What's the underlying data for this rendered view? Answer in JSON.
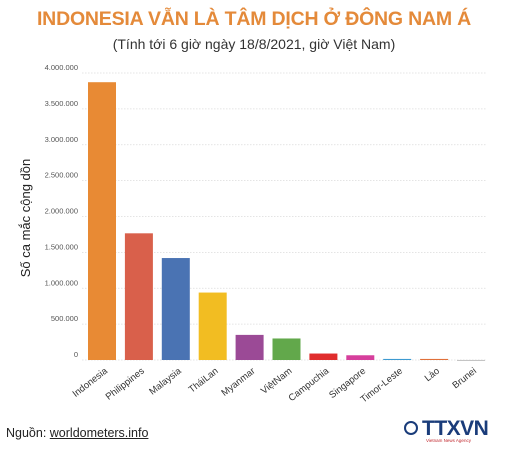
{
  "chart_data": {
    "type": "bar",
    "title": "INDONESIA VẪN LÀ TÂM DỊCH Ở ĐÔNG NAM Á",
    "subtitle": "(Tính tới 6 giờ ngày 18/8/2021, giờ Việt Nam)",
    "ylabel": "Số ca mắc cộng dồn",
    "xlabel": "",
    "ylim": [
      0,
      4000000
    ],
    "yticks": [
      "0",
      "500.000",
      "1.000.000",
      "1.500.000",
      "2.000.000",
      "2.500.000",
      "3.000.000",
      "3.500.000",
      "4.000.000"
    ],
    "grid": true,
    "categories": [
      "Indonesia",
      "Philippines",
      "Malaysia",
      "TháiLan",
      "Myanmar",
      "ViệtNam",
      "Campuchia",
      "Singapore",
      "Timor-Leste",
      "Lào",
      "Brunei"
    ],
    "values": [
      3871738,
      1765675,
      1421052,
      940000,
      350000,
      300000,
      90000,
      66000,
      15000,
      15000,
      350
    ],
    "colors": [
      "#e88a34",
      "#d9604b",
      "#4a73b3",
      "#f2bd22",
      "#9b4a96",
      "#62a84b",
      "#e02d2d",
      "#d63f9c",
      "#3d9ad1",
      "#e0703a",
      "#999999"
    ]
  },
  "source": {
    "label": "Nguồn: ",
    "link": "worldometers.info"
  },
  "logo": {
    "text": "TTXVN",
    "sub": "Vietnam News Agency",
    "icon": "ttxvn-logo-icon"
  }
}
